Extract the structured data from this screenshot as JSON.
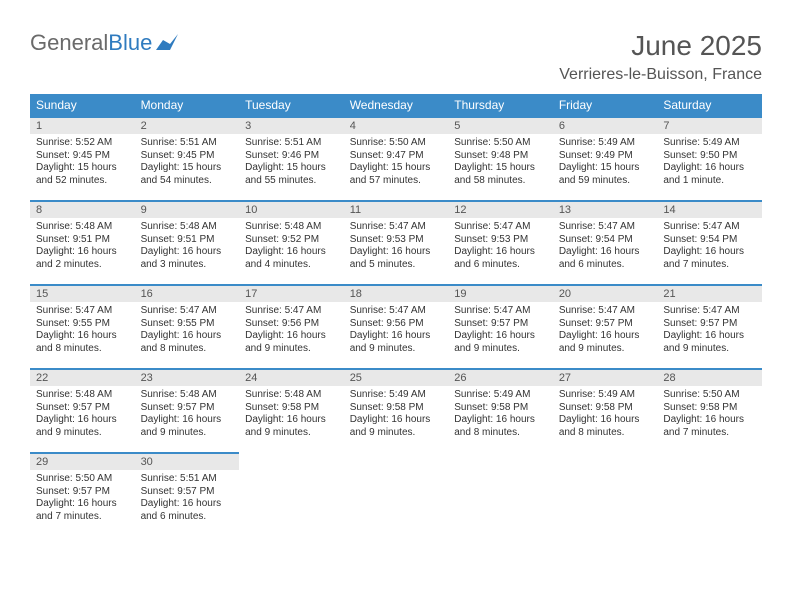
{
  "logo": {
    "text_gray": "General",
    "text_blue": "Blue"
  },
  "title": "June 2025",
  "location": "Verrieres-le-Buisson, France",
  "colors": {
    "header_bg": "#3b8bc8",
    "header_text": "#ffffff",
    "daynum_bg": "#e8e8e8",
    "body_text": "#333333",
    "logo_gray": "#6a6a6a",
    "logo_blue": "#2f7bbf"
  },
  "weekdays": [
    "Sunday",
    "Monday",
    "Tuesday",
    "Wednesday",
    "Thursday",
    "Friday",
    "Saturday"
  ],
  "weeks": [
    [
      {
        "n": "1",
        "sr": "Sunrise: 5:52 AM",
        "ss": "Sunset: 9:45 PM",
        "dl": "Daylight: 15 hours and 52 minutes."
      },
      {
        "n": "2",
        "sr": "Sunrise: 5:51 AM",
        "ss": "Sunset: 9:45 PM",
        "dl": "Daylight: 15 hours and 54 minutes."
      },
      {
        "n": "3",
        "sr": "Sunrise: 5:51 AM",
        "ss": "Sunset: 9:46 PM",
        "dl": "Daylight: 15 hours and 55 minutes."
      },
      {
        "n": "4",
        "sr": "Sunrise: 5:50 AM",
        "ss": "Sunset: 9:47 PM",
        "dl": "Daylight: 15 hours and 57 minutes."
      },
      {
        "n": "5",
        "sr": "Sunrise: 5:50 AM",
        "ss": "Sunset: 9:48 PM",
        "dl": "Daylight: 15 hours and 58 minutes."
      },
      {
        "n": "6",
        "sr": "Sunrise: 5:49 AM",
        "ss": "Sunset: 9:49 PM",
        "dl": "Daylight: 15 hours and 59 minutes."
      },
      {
        "n": "7",
        "sr": "Sunrise: 5:49 AM",
        "ss": "Sunset: 9:50 PM",
        "dl": "Daylight: 16 hours and 1 minute."
      }
    ],
    [
      {
        "n": "8",
        "sr": "Sunrise: 5:48 AM",
        "ss": "Sunset: 9:51 PM",
        "dl": "Daylight: 16 hours and 2 minutes."
      },
      {
        "n": "9",
        "sr": "Sunrise: 5:48 AM",
        "ss": "Sunset: 9:51 PM",
        "dl": "Daylight: 16 hours and 3 minutes."
      },
      {
        "n": "10",
        "sr": "Sunrise: 5:48 AM",
        "ss": "Sunset: 9:52 PM",
        "dl": "Daylight: 16 hours and 4 minutes."
      },
      {
        "n": "11",
        "sr": "Sunrise: 5:47 AM",
        "ss": "Sunset: 9:53 PM",
        "dl": "Daylight: 16 hours and 5 minutes."
      },
      {
        "n": "12",
        "sr": "Sunrise: 5:47 AM",
        "ss": "Sunset: 9:53 PM",
        "dl": "Daylight: 16 hours and 6 minutes."
      },
      {
        "n": "13",
        "sr": "Sunrise: 5:47 AM",
        "ss": "Sunset: 9:54 PM",
        "dl": "Daylight: 16 hours and 6 minutes."
      },
      {
        "n": "14",
        "sr": "Sunrise: 5:47 AM",
        "ss": "Sunset: 9:54 PM",
        "dl": "Daylight: 16 hours and 7 minutes."
      }
    ],
    [
      {
        "n": "15",
        "sr": "Sunrise: 5:47 AM",
        "ss": "Sunset: 9:55 PM",
        "dl": "Daylight: 16 hours and 8 minutes."
      },
      {
        "n": "16",
        "sr": "Sunrise: 5:47 AM",
        "ss": "Sunset: 9:55 PM",
        "dl": "Daylight: 16 hours and 8 minutes."
      },
      {
        "n": "17",
        "sr": "Sunrise: 5:47 AM",
        "ss": "Sunset: 9:56 PM",
        "dl": "Daylight: 16 hours and 9 minutes."
      },
      {
        "n": "18",
        "sr": "Sunrise: 5:47 AM",
        "ss": "Sunset: 9:56 PM",
        "dl": "Daylight: 16 hours and 9 minutes."
      },
      {
        "n": "19",
        "sr": "Sunrise: 5:47 AM",
        "ss": "Sunset: 9:57 PM",
        "dl": "Daylight: 16 hours and 9 minutes."
      },
      {
        "n": "20",
        "sr": "Sunrise: 5:47 AM",
        "ss": "Sunset: 9:57 PM",
        "dl": "Daylight: 16 hours and 9 minutes."
      },
      {
        "n": "21",
        "sr": "Sunrise: 5:47 AM",
        "ss": "Sunset: 9:57 PM",
        "dl": "Daylight: 16 hours and 9 minutes."
      }
    ],
    [
      {
        "n": "22",
        "sr": "Sunrise: 5:48 AM",
        "ss": "Sunset: 9:57 PM",
        "dl": "Daylight: 16 hours and 9 minutes."
      },
      {
        "n": "23",
        "sr": "Sunrise: 5:48 AM",
        "ss": "Sunset: 9:57 PM",
        "dl": "Daylight: 16 hours and 9 minutes."
      },
      {
        "n": "24",
        "sr": "Sunrise: 5:48 AM",
        "ss": "Sunset: 9:58 PM",
        "dl": "Daylight: 16 hours and 9 minutes."
      },
      {
        "n": "25",
        "sr": "Sunrise: 5:49 AM",
        "ss": "Sunset: 9:58 PM",
        "dl": "Daylight: 16 hours and 9 minutes."
      },
      {
        "n": "26",
        "sr": "Sunrise: 5:49 AM",
        "ss": "Sunset: 9:58 PM",
        "dl": "Daylight: 16 hours and 8 minutes."
      },
      {
        "n": "27",
        "sr": "Sunrise: 5:49 AM",
        "ss": "Sunset: 9:58 PM",
        "dl": "Daylight: 16 hours and 8 minutes."
      },
      {
        "n": "28",
        "sr": "Sunrise: 5:50 AM",
        "ss": "Sunset: 9:58 PM",
        "dl": "Daylight: 16 hours and 7 minutes."
      }
    ],
    [
      {
        "n": "29",
        "sr": "Sunrise: 5:50 AM",
        "ss": "Sunset: 9:57 PM",
        "dl": "Daylight: 16 hours and 7 minutes."
      },
      {
        "n": "30",
        "sr": "Sunrise: 5:51 AM",
        "ss": "Sunset: 9:57 PM",
        "dl": "Daylight: 16 hours and 6 minutes."
      },
      null,
      null,
      null,
      null,
      null
    ]
  ]
}
